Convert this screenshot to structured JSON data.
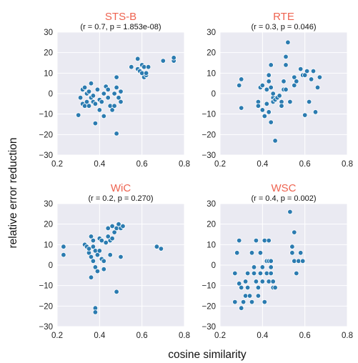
{
  "figure": {
    "ylabel": "relative error reduction",
    "xlabel": "cosine similarity",
    "title_color": "#ee6350",
    "point_color": "#2b7bb0",
    "panel_bg": "#eaeaf2"
  },
  "chart_data": [
    {
      "type": "scatter",
      "title": "STS-B",
      "subtitle": "(r = 0.7, p = 1.853e-08)",
      "xlim": [
        0.2,
        0.8
      ],
      "ylim": [
        -30,
        30
      ],
      "xticks": [
        "0.2",
        "0.4",
        "0.6",
        "0.8"
      ],
      "yticks": [
        "−30",
        "−20",
        "−10",
        "0",
        "10",
        "20",
        "30"
      ],
      "grid": true,
      "points": [
        [
          0.3,
          -10.5
        ],
        [
          0.31,
          -2
        ],
        [
          0.32,
          2
        ],
        [
          0.32,
          -5
        ],
        [
          0.33,
          -6
        ],
        [
          0.33,
          3
        ],
        [
          0.34,
          -4
        ],
        [
          0.34,
          0
        ],
        [
          0.35,
          -6
        ],
        [
          0.35,
          1
        ],
        [
          0.36,
          5
        ],
        [
          0.36,
          -2
        ],
        [
          0.37,
          -1
        ],
        [
          0.37,
          -4
        ],
        [
          0.38,
          -14.5
        ],
        [
          0.38,
          -5
        ],
        [
          0.39,
          2
        ],
        [
          0.4,
          -3
        ],
        [
          0.4,
          -8
        ],
        [
          0.41,
          -4
        ],
        [
          0.42,
          0
        ],
        [
          0.42,
          -11
        ],
        [
          0.43,
          3.5
        ],
        [
          0.44,
          -2
        ],
        [
          0.44,
          2
        ],
        [
          0.45,
          -6
        ],
        [
          0.46,
          -8
        ],
        [
          0.47,
          -6
        ],
        [
          0.47,
          0
        ],
        [
          0.48,
          3
        ],
        [
          0.48,
          -19.5
        ],
        [
          0.48,
          8
        ],
        [
          0.49,
          -2
        ],
        [
          0.5,
          1
        ],
        [
          0.5,
          -4
        ],
        [
          0.55,
          13
        ],
        [
          0.58,
          17
        ],
        [
          0.58,
          12
        ],
        [
          0.59,
          11
        ],
        [
          0.6,
          10
        ],
        [
          0.6,
          14
        ],
        [
          0.61,
          13
        ],
        [
          0.61,
          8
        ],
        [
          0.62,
          9
        ],
        [
          0.62,
          10
        ],
        [
          0.63,
          13
        ],
        [
          0.7,
          16
        ],
        [
          0.75,
          16
        ],
        [
          0.75,
          17.5
        ]
      ]
    },
    {
      "type": "scatter",
      "title": "RTE",
      "subtitle": "(r = 0.3, p = 0.046)",
      "xlim": [
        0.2,
        0.8
      ],
      "ylim": [
        -30,
        30
      ],
      "xticks": [
        "0.2",
        "0.4",
        "0.6",
        "0.8"
      ],
      "yticks": [
        "−30",
        "−20",
        "−10",
        "0",
        "10",
        "20",
        "30"
      ],
      "grid": true,
      "points": [
        [
          0.29,
          4
        ],
        [
          0.3,
          -7
        ],
        [
          0.3,
          7
        ],
        [
          0.38,
          -4
        ],
        [
          0.38,
          -6
        ],
        [
          0.39,
          3
        ],
        [
          0.4,
          -8
        ],
        [
          0.4,
          4
        ],
        [
          0.41,
          -11
        ],
        [
          0.42,
          -5
        ],
        [
          0.42,
          2
        ],
        [
          0.43,
          -9
        ],
        [
          0.43,
          6
        ],
        [
          0.43,
          9
        ],
        [
          0.44,
          3
        ],
        [
          0.44,
          -14
        ],
        [
          0.44,
          14
        ],
        [
          0.45,
          -2
        ],
        [
          0.45,
          -4
        ],
        [
          0.45,
          0
        ],
        [
          0.46,
          -3
        ],
        [
          0.46,
          -23
        ],
        [
          0.46,
          -3
        ],
        [
          0.47,
          -2
        ],
        [
          0.48,
          -1
        ],
        [
          0.49,
          -4
        ],
        [
          0.49,
          -6
        ],
        [
          0.5,
          6
        ],
        [
          0.5,
          2
        ],
        [
          0.51,
          14
        ],
        [
          0.51,
          18
        ],
        [
          0.51,
          2
        ],
        [
          0.52,
          25
        ],
        [
          0.53,
          -4
        ],
        [
          0.55,
          4
        ],
        [
          0.55,
          8
        ],
        [
          0.56,
          6
        ],
        [
          0.58,
          12
        ],
        [
          0.59,
          9
        ],
        [
          0.6,
          -10.5
        ],
        [
          0.6,
          9
        ],
        [
          0.61,
          11
        ],
        [
          0.62,
          -4
        ],
        [
          0.63,
          7
        ],
        [
          0.64,
          11
        ],
        [
          0.65,
          -9
        ],
        [
          0.66,
          3
        ],
        [
          0.67,
          8
        ]
      ]
    },
    {
      "type": "scatter",
      "title": "WiC",
      "subtitle": "(r = 0.2, p = 0.270)",
      "xlim": [
        0.2,
        0.8
      ],
      "ylim": [
        -30,
        30
      ],
      "xticks": [
        "0.2",
        "0.4",
        "0.6",
        "0.8"
      ],
      "yticks": [
        "−30",
        "−20",
        "−10",
        "0",
        "10",
        "20",
        "30"
      ],
      "grid": true,
      "points": [
        [
          0.23,
          9
        ],
        [
          0.23,
          5
        ],
        [
          0.33,
          10
        ],
        [
          0.34,
          9
        ],
        [
          0.35,
          6
        ],
        [
          0.35,
          8
        ],
        [
          0.36,
          4
        ],
        [
          0.36,
          14
        ],
        [
          0.36,
          -6
        ],
        [
          0.37,
          12
        ],
        [
          0.37,
          2
        ],
        [
          0.37,
          9
        ],
        [
          0.38,
          -1
        ],
        [
          0.38,
          7
        ],
        [
          0.38,
          -21
        ],
        [
          0.38,
          -23
        ],
        [
          0.39,
          5
        ],
        [
          0.39,
          -3
        ],
        [
          0.4,
          13
        ],
        [
          0.4,
          7
        ],
        [
          0.41,
          12
        ],
        [
          0.41,
          3
        ],
        [
          0.42,
          2
        ],
        [
          0.42,
          -2
        ],
        [
          0.43,
          11
        ],
        [
          0.44,
          18
        ],
        [
          0.44,
          14
        ],
        [
          0.45,
          5
        ],
        [
          0.45,
          12
        ],
        [
          0.46,
          19
        ],
        [
          0.46,
          13
        ],
        [
          0.47,
          16
        ],
        [
          0.48,
          -13
        ],
        [
          0.48,
          18
        ],
        [
          0.49,
          20
        ],
        [
          0.5,
          4
        ],
        [
          0.5,
          18
        ],
        [
          0.51,
          19
        ],
        [
          0.67,
          9
        ],
        [
          0.69,
          8
        ]
      ]
    },
    {
      "type": "scatter",
      "title": "WSC",
      "subtitle": "(r = 0.4, p = 0.002)",
      "xlim": [
        0.2,
        0.8
      ],
      "ylim": [
        -30,
        30
      ],
      "xticks": [
        "0.2",
        "0.4",
        "0.6",
        "0.8"
      ],
      "yticks": [
        "−30",
        "−20",
        "−10",
        "0",
        "10",
        "20",
        "30"
      ],
      "grid": true,
      "points": [
        [
          0.27,
          -4
        ],
        [
          0.27,
          -18
        ],
        [
          0.28,
          6
        ],
        [
          0.28,
          6
        ],
        [
          0.29,
          -9
        ],
        [
          0.29,
          12
        ],
        [
          0.3,
          -11
        ],
        [
          0.3,
          -21
        ],
        [
          0.31,
          -18
        ],
        [
          0.32,
          -8
        ],
        [
          0.32,
          -15
        ],
        [
          0.33,
          -4
        ],
        [
          0.33,
          -11
        ],
        [
          0.34,
          -15
        ],
        [
          0.35,
          -18
        ],
        [
          0.35,
          6
        ],
        [
          0.36,
          -4
        ],
        [
          0.36,
          -1
        ],
        [
          0.37,
          -8
        ],
        [
          0.37,
          12
        ],
        [
          0.38,
          -11
        ],
        [
          0.38,
          -15
        ],
        [
          0.39,
          -4
        ],
        [
          0.39,
          6
        ],
        [
          0.4,
          -8
        ],
        [
          0.4,
          -1
        ],
        [
          0.41,
          12
        ],
        [
          0.41,
          -18
        ],
        [
          0.42,
          -4
        ],
        [
          0.42,
          2
        ],
        [
          0.43,
          -8
        ],
        [
          0.43,
          12
        ],
        [
          0.43,
          2
        ],
        [
          0.44,
          -1
        ],
        [
          0.44,
          -4
        ],
        [
          0.44,
          2
        ],
        [
          0.45,
          -8
        ],
        [
          0.45,
          -11
        ],
        [
          0.46,
          -11
        ],
        [
          0.53,
          26
        ],
        [
          0.54,
          9
        ],
        [
          0.54,
          6
        ],
        [
          0.55,
          16
        ],
        [
          0.55,
          2
        ],
        [
          0.56,
          -4
        ],
        [
          0.57,
          2
        ],
        [
          0.58,
          6
        ],
        [
          0.59,
          2
        ]
      ]
    }
  ]
}
